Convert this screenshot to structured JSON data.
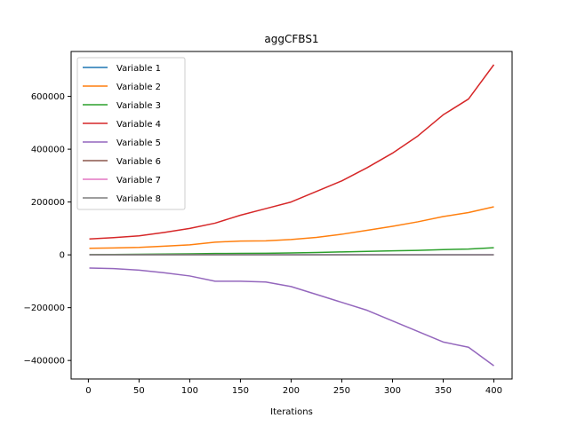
{
  "chart_data": {
    "type": "line",
    "title": "aggCFBS1",
    "xlabel": "Iterations",
    "ylabel": "",
    "xlim": [
      -17,
      418
    ],
    "ylim": [
      -470000,
      770000
    ],
    "xticks": [
      0,
      50,
      100,
      150,
      200,
      250,
      300,
      350,
      400
    ],
    "yticks": [
      -400000,
      -200000,
      0,
      200000,
      400000,
      600000
    ],
    "grid": false,
    "legend_position": "top-left",
    "x": [
      1,
      25,
      50,
      75,
      100,
      125,
      150,
      175,
      200,
      225,
      250,
      275,
      300,
      325,
      350,
      375,
      400
    ],
    "series": [
      {
        "name": "Variable 1",
        "color": "#1f77b4",
        "values": [
          0,
          0,
          0,
          0,
          0,
          0,
          0,
          0,
          0,
          0,
          0,
          0,
          0,
          0,
          0,
          0,
          0
        ]
      },
      {
        "name": "Variable 2",
        "color": "#ff7f0e",
        "values": [
          25000,
          26000,
          28000,
          33000,
          38000,
          48000,
          52000,
          53000,
          58000,
          66000,
          78000,
          93000,
          108000,
          125000,
          145000,
          160000,
          182000
        ]
      },
      {
        "name": "Variable 3",
        "color": "#2ca02c",
        "values": [
          1000,
          1500,
          2000,
          3000,
          4000,
          5000,
          5500,
          6000,
          7000,
          9000,
          11000,
          13000,
          15000,
          17000,
          20000,
          22000,
          27000
        ]
      },
      {
        "name": "Variable 4",
        "color": "#d62728",
        "values": [
          60000,
          65000,
          72000,
          85000,
          100000,
          120000,
          150000,
          175000,
          200000,
          240000,
          280000,
          330000,
          385000,
          450000,
          530000,
          590000,
          720000
        ]
      },
      {
        "name": "Variable 5",
        "color": "#9467bd",
        "values": [
          -50000,
          -52000,
          -58000,
          -68000,
          -80000,
          -100000,
          -100000,
          -103000,
          -120000,
          -150000,
          -180000,
          -210000,
          -250000,
          -290000,
          -330000,
          -350000,
          -420000
        ]
      },
      {
        "name": "Variable 6",
        "color": "#8c564b",
        "values": [
          0,
          0,
          0,
          0,
          0,
          0,
          0,
          0,
          0,
          0,
          0,
          0,
          0,
          0,
          0,
          0,
          0
        ]
      },
      {
        "name": "Variable 7",
        "color": "#e377c2",
        "values": [
          0,
          0,
          0,
          0,
          0,
          0,
          0,
          0,
          0,
          0,
          0,
          0,
          0,
          0,
          0,
          0,
          0
        ]
      },
      {
        "name": "Variable 8",
        "color": "#7f7f7f",
        "values": [
          0,
          0,
          0,
          0,
          0,
          0,
          0,
          0,
          0,
          0,
          0,
          0,
          0,
          0,
          0,
          0,
          0
        ]
      }
    ]
  }
}
